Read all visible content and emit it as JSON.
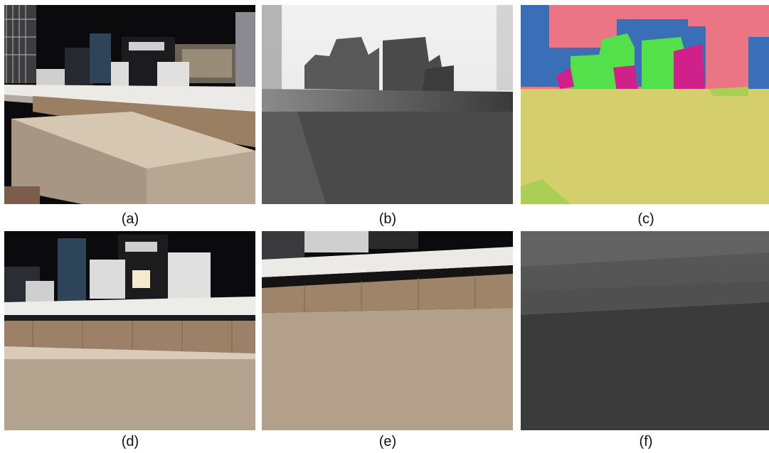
{
  "figure": {
    "panels": [
      {
        "id": "a",
        "caption": "(a)",
        "content": "rgb-render"
      },
      {
        "id": "b",
        "caption": "(b)",
        "content": "depth-map"
      },
      {
        "id": "c",
        "caption": "(c)",
        "content": "semantic-segmentation"
      },
      {
        "id": "d",
        "caption": "(d)",
        "content": "rgb-render"
      },
      {
        "id": "e",
        "caption": "(e)",
        "content": "rgb-render"
      },
      {
        "id": "f",
        "caption": "(f)",
        "content": "depth-map"
      }
    ],
    "colors": {
      "segmentation_sky": "#e97585",
      "segmentation_blue": "#3a6fb8",
      "segmentation_green": "#54e04b",
      "segmentation_magenta": "#d0208a",
      "segmentation_floor": "#d4cf6c",
      "segmentation_grass": "#a9cf55"
    }
  }
}
